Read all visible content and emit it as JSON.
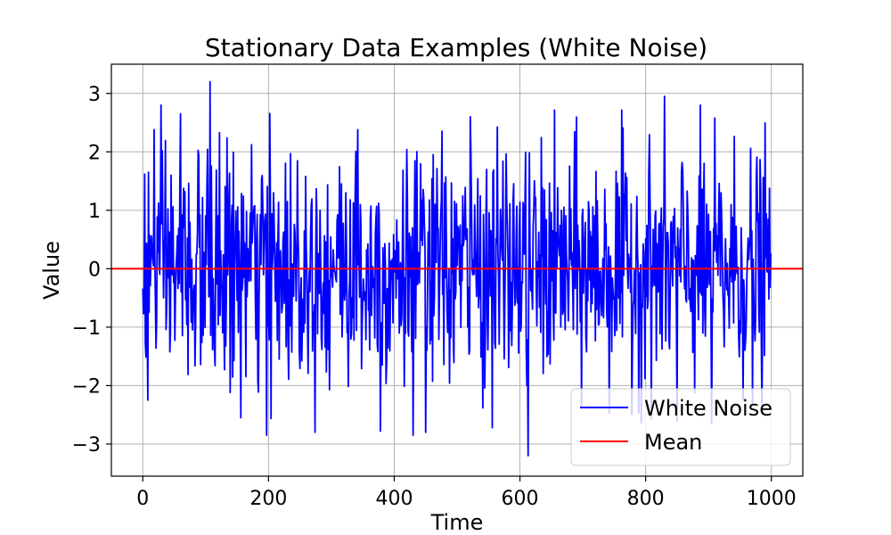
{
  "chart_data": {
    "type": "line",
    "title": "Stationary Data Examples (White Noise)",
    "xlabel": "Time",
    "ylabel": "Value",
    "xlim": [
      -50,
      1050
    ],
    "ylim": [
      -3.55,
      3.5
    ],
    "xticks": [
      0,
      200,
      400,
      600,
      800,
      1000
    ],
    "xtick_labels": [
      "0",
      "200",
      "400",
      "600",
      "800",
      "1000"
    ],
    "yticks": [
      -3,
      -2,
      -1,
      0,
      1,
      2,
      3
    ],
    "ytick_labels": [
      "−3",
      "−2",
      "−1",
      "0",
      "1",
      "2",
      "3"
    ],
    "grid": true,
    "legend_position": "lower-right",
    "series": [
      {
        "name": "White Noise",
        "color": "#0000ff",
        "generated": "white noise, 1000 samples, mean 0, std 1; extremes ≈3.2 near t=107 and ≈−3.2 near t=613",
        "n_points": 1000,
        "x_start": 0,
        "x_step": 1,
        "values_visible_range": [
          -3.2,
          3.2
        ]
      },
      {
        "name": "Mean",
        "color": "#ff0000",
        "type": "hline",
        "y": 0
      }
    ]
  }
}
